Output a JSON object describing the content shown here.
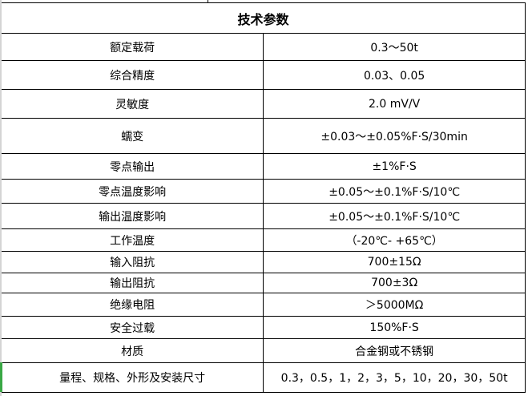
{
  "title": "技术参数",
  "rows": [
    {
      "label": "额定载荷",
      "value": "0.3～50t"
    },
    {
      "label": "综合精度",
      "value": "0.03、0.05"
    },
    {
      "label": "灵敏度",
      "value": "2.0 mV/V"
    },
    {
      "label": "蠕变",
      "value": "±0.03～±0.05%F·S/30min"
    },
    {
      "label": "零点输出",
      "value": "±1%F·S"
    },
    {
      "label": "零点温度影响",
      "value": "±0.05～±0.1%F·S/10℃"
    },
    {
      "label": "输出温度影响",
      "value": "±0.05～±0.1%F·S/10℃"
    },
    {
      "label": "工作温度",
      "value": "（-20℃- +65℃）"
    },
    {
      "label": "输入阻抗",
      "value": "700±15Ω"
    },
    {
      "label": "输出阻抗",
      "value": "700±3Ω"
    },
    {
      "label": "绝缘电阻",
      "value": "＞5000MΩ"
    },
    {
      "label": "安全过载",
      "value": "150%F·S"
    },
    {
      "label": "材质",
      "value": "合金钢或不锈钢"
    },
    {
      "label": "量程、规格、外形及安装尺寸",
      "value": "0.3，0.5，1，2，3，5，10，20，30，50t"
    }
  ]
}
